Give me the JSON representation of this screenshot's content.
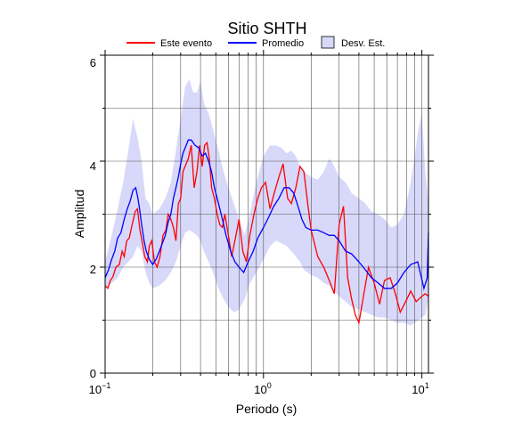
{
  "chart_data": {
    "type": "line",
    "title": "Sitio SHTH",
    "xlabel": "Periodo (s)",
    "ylabel": "Amplitud",
    "xscale": "log",
    "xlim": [
      0.1,
      11
    ],
    "ylim": [
      0,
      6
    ],
    "x_ticks": [
      {
        "base": "10",
        "exp": "−1"
      },
      {
        "base": "10",
        "exp": "0"
      },
      {
        "base": "10",
        "exp": "1"
      }
    ],
    "y_ticks": [
      "0",
      "2",
      "4",
      "6"
    ],
    "grid": true,
    "legend": {
      "placement": "top",
      "items": [
        {
          "label": "Este evento",
          "color": "#ff0000",
          "kind": "line"
        },
        {
          "label": "Promedio",
          "color": "#0000ff",
          "kind": "line"
        },
        {
          "label": "Desv. Est.",
          "color": "#d8d8fa",
          "kind": "patch"
        }
      ]
    },
    "series": [
      {
        "name": "Este evento",
        "color": "#ff0000",
        "x": [
          0.1,
          0.104,
          0.108,
          0.112,
          0.117,
          0.123,
          0.128,
          0.132,
          0.137,
          0.142,
          0.148,
          0.155,
          0.16,
          0.166,
          0.172,
          0.178,
          0.185,
          0.19,
          0.197,
          0.205,
          0.213,
          0.222,
          0.232,
          0.242,
          0.25,
          0.26,
          0.27,
          0.28,
          0.29,
          0.3,
          0.31,
          0.32,
          0.335,
          0.35,
          0.365,
          0.38,
          0.395,
          0.41,
          0.425,
          0.44,
          0.455,
          0.47,
          0.49,
          0.51,
          0.53,
          0.55,
          0.57,
          0.6,
          0.63,
          0.66,
          0.7,
          0.74,
          0.78,
          0.82,
          0.87,
          0.92,
          0.97,
          1.03,
          1.1,
          1.17,
          1.25,
          1.33,
          1.42,
          1.5,
          1.6,
          1.7,
          1.8,
          1.9,
          2.0,
          2.2,
          2.4,
          2.6,
          2.8,
          3.0,
          3.2,
          3.4,
          3.6,
          3.8,
          4.0,
          4.3,
          4.6,
          5.0,
          5.4,
          5.8,
          6.3,
          6.8,
          7.3,
          7.9,
          8.5,
          9.2,
          10.0,
          10.5,
          11.0
        ],
        "values": [
          1.65,
          1.6,
          1.75,
          1.82,
          2.0,
          2.05,
          2.3,
          2.2,
          2.5,
          2.55,
          2.8,
          3.05,
          3.1,
          2.7,
          2.45,
          2.2,
          2.1,
          2.4,
          2.5,
          2.1,
          2.0,
          2.2,
          2.6,
          2.7,
          3.0,
          2.9,
          2.75,
          2.5,
          3.2,
          3.3,
          3.8,
          3.9,
          4.05,
          4.3,
          3.5,
          3.8,
          4.3,
          3.9,
          4.3,
          4.35,
          4.05,
          3.5,
          3.3,
          3.0,
          2.8,
          2.75,
          3.0,
          2.6,
          2.2,
          2.5,
          2.9,
          2.3,
          2.1,
          2.6,
          3.0,
          3.3,
          3.5,
          3.6,
          3.1,
          3.4,
          3.7,
          3.95,
          3.3,
          3.2,
          3.5,
          3.9,
          3.8,
          3.2,
          2.7,
          2.2,
          2.0,
          1.75,
          1.5,
          2.8,
          3.15,
          1.8,
          1.4,
          1.1,
          0.95,
          1.5,
          2.0,
          1.7,
          1.3,
          1.75,
          1.8,
          1.5,
          1.15,
          1.35,
          1.55,
          1.35,
          1.45,
          1.5,
          1.45
        ]
      },
      {
        "name": "Promedio",
        "color": "#0000ff",
        "x": [
          0.1,
          0.105,
          0.11,
          0.115,
          0.12,
          0.126,
          0.132,
          0.138,
          0.144,
          0.15,
          0.156,
          0.16,
          0.165,
          0.17,
          0.176,
          0.182,
          0.19,
          0.2,
          0.21,
          0.22,
          0.23,
          0.24,
          0.25,
          0.26,
          0.27,
          0.28,
          0.29,
          0.3,
          0.31,
          0.32,
          0.335,
          0.35,
          0.37,
          0.39,
          0.41,
          0.43,
          0.45,
          0.47,
          0.49,
          0.52,
          0.55,
          0.58,
          0.62,
          0.66,
          0.7,
          0.75,
          0.8,
          0.86,
          0.92,
          1.0,
          1.08,
          1.16,
          1.25,
          1.35,
          1.45,
          1.55,
          1.65,
          1.75,
          1.85,
          2.0,
          2.2,
          2.4,
          2.6,
          2.8,
          3.0,
          3.3,
          3.6,
          4.0,
          4.4,
          4.8,
          5.3,
          5.8,
          6.4,
          7.0,
          7.7,
          8.5,
          9.4,
          10.3,
          10.8,
          11.0
        ],
        "values": [
          1.8,
          1.95,
          2.15,
          2.3,
          2.55,
          2.65,
          2.9,
          3.1,
          3.25,
          3.45,
          3.5,
          3.35,
          3.1,
          2.8,
          2.5,
          2.3,
          2.15,
          2.05,
          2.15,
          2.3,
          2.45,
          2.6,
          2.85,
          3.0,
          3.3,
          3.5,
          3.7,
          3.95,
          4.15,
          4.25,
          4.4,
          4.4,
          4.3,
          4.25,
          4.1,
          4.15,
          4.0,
          3.8,
          3.5,
          3.2,
          2.9,
          2.6,
          2.3,
          2.1,
          2.0,
          1.9,
          2.1,
          2.3,
          2.55,
          2.75,
          2.95,
          3.15,
          3.3,
          3.5,
          3.5,
          3.4,
          3.15,
          2.9,
          2.75,
          2.7,
          2.7,
          2.65,
          2.6,
          2.6,
          2.5,
          2.3,
          2.25,
          2.1,
          1.95,
          1.8,
          1.7,
          1.6,
          1.6,
          1.7,
          1.9,
          2.05,
          2.1,
          1.6,
          1.8,
          2.65
        ]
      }
    ],
    "band": {
      "name": "Desv. Est.",
      "color": "#d8d8fa",
      "x": [
        0.1,
        0.11,
        0.12,
        0.13,
        0.14,
        0.15,
        0.16,
        0.17,
        0.18,
        0.19,
        0.2,
        0.22,
        0.24,
        0.26,
        0.28,
        0.3,
        0.32,
        0.34,
        0.36,
        0.38,
        0.4,
        0.42,
        0.45,
        0.48,
        0.52,
        0.56,
        0.6,
        0.65,
        0.7,
        0.76,
        0.82,
        0.9,
        1.0,
        1.1,
        1.2,
        1.3,
        1.4,
        1.5,
        1.6,
        1.7,
        1.8,
        2.0,
        2.2,
        2.4,
        2.6,
        2.8,
        3.0,
        3.3,
        3.6,
        4.0,
        4.4,
        4.8,
        5.3,
        5.8,
        6.4,
        7.0,
        7.7,
        8.5,
        9.0,
        9.5,
        10.0,
        10.5,
        11.0
      ],
      "upper": [
        2.1,
        2.6,
        3.1,
        3.6,
        4.2,
        4.8,
        4.45,
        4.0,
        3.3,
        3.2,
        3.0,
        3.1,
        3.3,
        3.6,
        4.2,
        4.8,
        5.4,
        5.55,
        5.3,
        5.3,
        5.5,
        5.1,
        4.9,
        4.6,
        4.2,
        3.8,
        3.5,
        3.2,
        2.9,
        2.6,
        3.0,
        3.6,
        4.1,
        4.3,
        4.3,
        4.25,
        4.15,
        4.2,
        4.1,
        3.9,
        3.8,
        3.7,
        3.65,
        3.8,
        4.05,
        3.9,
        3.7,
        3.6,
        3.4,
        3.3,
        3.2,
        3.05,
        3.0,
        2.9,
        2.75,
        2.8,
        3.0,
        3.6,
        4.1,
        4.6,
        4.9,
        3.8,
        3.2
      ],
      "lower": [
        1.6,
        1.7,
        1.8,
        2.0,
        2.1,
        2.2,
        2.4,
        2.3,
        1.9,
        1.7,
        1.6,
        1.65,
        1.75,
        1.9,
        2.1,
        2.4,
        2.65,
        2.7,
        2.65,
        2.6,
        2.5,
        2.3,
        2.1,
        1.9,
        1.6,
        1.4,
        1.25,
        1.15,
        1.2,
        1.4,
        1.7,
        1.9,
        2.15,
        2.4,
        2.5,
        2.45,
        2.4,
        2.3,
        2.2,
        2.1,
        1.95,
        1.85,
        1.8,
        1.7,
        1.65,
        1.55,
        1.45,
        1.35,
        1.25,
        1.2,
        1.15,
        1.1,
        1.05,
        1.05,
        1.0,
        0.95,
        0.95,
        0.9,
        0.95,
        1.0,
        1.05,
        1.1,
        1.4
      ]
    }
  }
}
